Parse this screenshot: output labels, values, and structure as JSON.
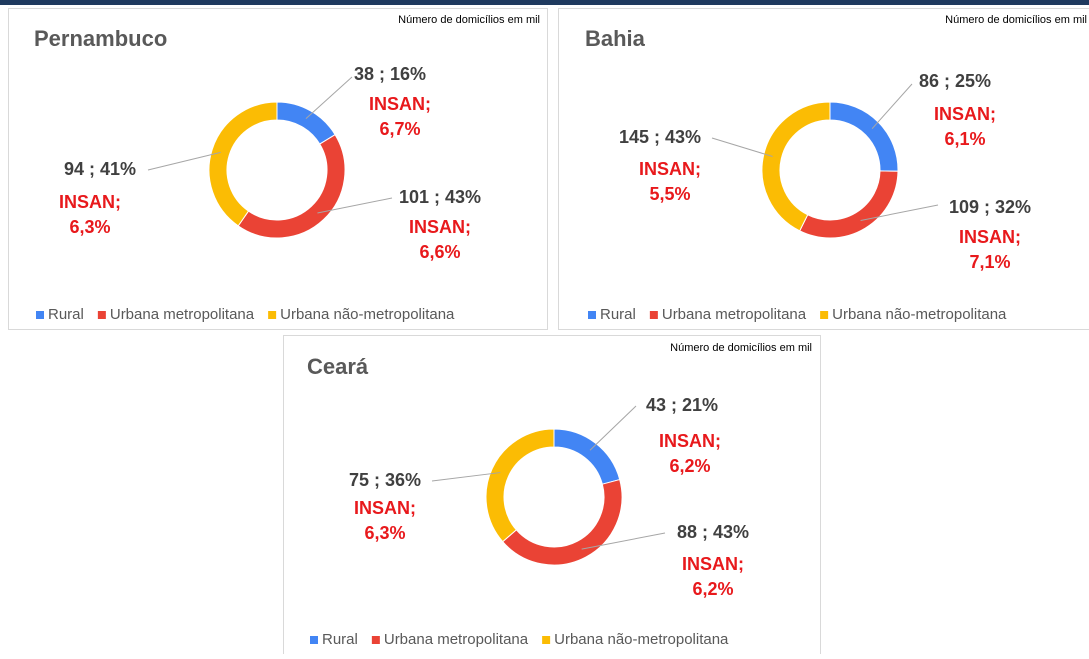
{
  "chart_data": [
    {
      "type": "donut",
      "title": "Pernambuco",
      "subtitle": "Número de domicílios em mil",
      "categories": [
        "Rural",
        "Urbana metropolitana",
        "Urbana não-metropolitana"
      ],
      "values": [
        38,
        101,
        94
      ],
      "value_labels": [
        "38 ; 16%",
        "101 ; 43%",
        "94 ; 41%"
      ],
      "annotations": [
        [
          "INSAN;",
          "6,7%"
        ],
        [
          "INSAN;",
          "6,6%"
        ],
        [
          "INSAN;",
          "6,3%"
        ]
      ],
      "colors": [
        "#4285f4",
        "#ea4335",
        "#fbbc04"
      ],
      "legend": "bottom"
    },
    {
      "type": "donut",
      "title": "Bahia",
      "subtitle": "Número de domicílios em mil",
      "categories": [
        "Rural",
        "Urbana metropolitana",
        "Urbana não-metropolitana"
      ],
      "values": [
        86,
        109,
        145
      ],
      "value_labels": [
        "86 ; 25%",
        "109 ; 32%",
        "145 ; 43%"
      ],
      "annotations": [
        [
          "INSAN;",
          "6,1%"
        ],
        [
          "INSAN;",
          "7,1%"
        ],
        [
          "INSAN;",
          "5,5%"
        ]
      ],
      "colors": [
        "#4285f4",
        "#ea4335",
        "#fbbc04"
      ],
      "legend": "bottom"
    },
    {
      "type": "donut",
      "title": "Ceará",
      "subtitle": "Número de domicílios em mil",
      "categories": [
        "Rural",
        "Urbana metropolitana",
        "Urbana não-metropolitana"
      ],
      "values": [
        43,
        88,
        75
      ],
      "value_labels": [
        "43 ; 21%",
        "88 ; 43%",
        "75 ; 36%"
      ],
      "annotations": [
        [
          "INSAN;",
          "6,2%"
        ],
        [
          "INSAN;",
          "6,2%"
        ],
        [
          "INSAN;",
          "6,3%"
        ]
      ],
      "colors": [
        "#4285f4",
        "#ea4335",
        "#fbbc04"
      ],
      "legend": "bottom"
    }
  ]
}
